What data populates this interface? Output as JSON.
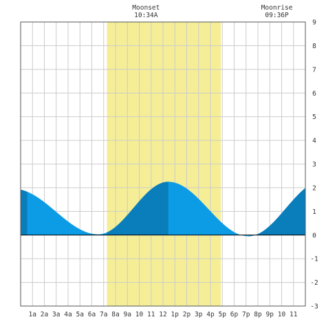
{
  "chart_data": {
    "type": "area",
    "xlim": [
      0,
      24
    ],
    "ylim": [
      -3,
      9
    ],
    "y_ticks": [
      "-3",
      "-2",
      "-1",
      "0",
      "1",
      "2",
      "3",
      "4",
      "5",
      "6",
      "7",
      "8",
      "9"
    ],
    "y_tick_values": [
      -3,
      -2,
      -1,
      0,
      1,
      2,
      3,
      4,
      5,
      6,
      7,
      8,
      9
    ],
    "x_tick_hours": [
      1,
      2,
      3,
      4,
      5,
      6,
      7,
      8,
      9,
      10,
      11,
      12,
      13,
      14,
      15,
      16,
      17,
      18,
      19,
      20,
      21,
      22,
      23
    ],
    "x_ticks": [
      "1a",
      "2a",
      "3a",
      "4a",
      "5a",
      "6a",
      "7a",
      "8a",
      "9a",
      "10",
      "11",
      "12",
      "1p",
      "2p",
      "3p",
      "4p",
      "5p",
      "6p",
      "7p",
      "8p",
      "9p",
      "10",
      "11"
    ],
    "grid": true,
    "daylight_band": [
      7.27,
      16.88
    ],
    "extremes": [
      {
        "x": -0.6,
        "y": 1.95
      },
      {
        "x": 6.55,
        "y": 0.03
      },
      {
        "x": 12.45,
        "y": 2.25
      },
      {
        "x": 19.2,
        "y": -0.05
      },
      {
        "x": 25.5,
        "y": 2.3
      }
    ],
    "shade_periods": [
      [
        0,
        0.55
      ],
      [
        7.27,
        12.45
      ],
      [
        19.2,
        24
      ]
    ],
    "annotations": [
      {
        "title": "Moonset",
        "time": "10:34A",
        "hour": 10.57
      },
      {
        "title": "Moonrise",
        "time": "09:36P",
        "hour": 21.6
      }
    ],
    "colors": {
      "water_light": "#0c9ce6",
      "water_dark": "#0a7dbb",
      "daylight": "#f5ee96",
      "grid": "#cccccc"
    }
  }
}
